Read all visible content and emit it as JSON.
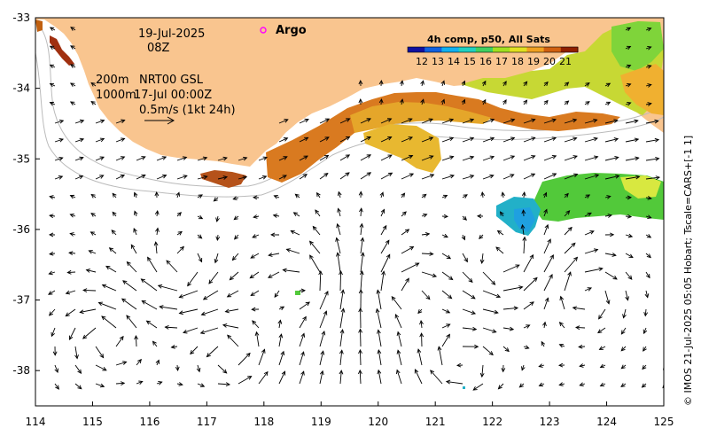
{
  "map": {
    "date": "19-Jul-2025",
    "time": "08Z",
    "depth_200": "200m",
    "product": "NRT00 GSL",
    "depth_1000": "1000m",
    "product_time": "17-Jul 00:00Z",
    "scale_label": "0.5m/s (1kt 24h)",
    "argo_label": "Argo",
    "copyright": "© IMOS 21-Jul-2025 05:05 Hobart; Tscale=CARS+[-1 1]",
    "land_color": "#F9C58F",
    "ocean_color": "#FFFFFF",
    "argo_color": "#FF00FF",
    "x_ticks": [
      "114",
      "115",
      "116",
      "117",
      "118",
      "119",
      "120",
      "121",
      "122",
      "123",
      "124",
      "125"
    ],
    "y_ticks": [
      "-33",
      "-34",
      "-35",
      "-36",
      "-37",
      "-38"
    ],
    "lon_range": [
      114,
      125
    ],
    "lat_range": [
      -33,
      -38.5
    ]
  },
  "colorbar": {
    "title": "4h comp, p50, All Sats",
    "ticks": [
      "12",
      "13",
      "14",
      "15",
      "16",
      "17",
      "18",
      "19",
      "20",
      "21"
    ],
    "colors": [
      "#1010A0",
      "#1060E0",
      "#10B0F0",
      "#20D0C0",
      "#40D060",
      "#A0E020",
      "#E0E020",
      "#F0A020",
      "#D06010",
      "#902000"
    ]
  }
}
